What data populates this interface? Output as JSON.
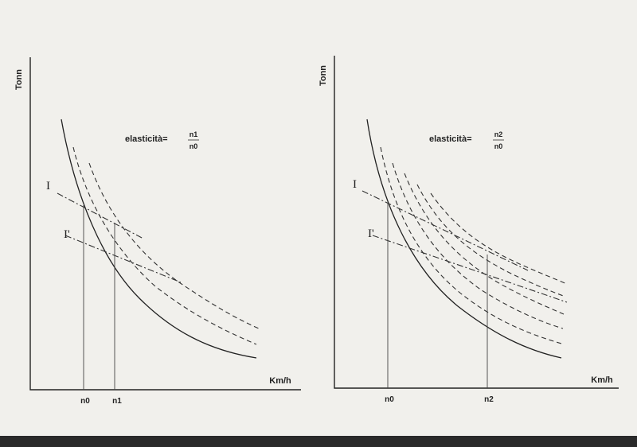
{
  "diagrams": [
    {
      "y_label": "Tonn",
      "x_label": "Km/h",
      "formula_left": "elasticità=",
      "formula_num": "n1",
      "formula_den": "n0",
      "line_I": "I",
      "line_I_prime": "I'",
      "tick_a": "n0",
      "tick_b": "n1"
    },
    {
      "y_label": "Tonn",
      "x_label": "Km/h",
      "formula_left": "elasticità=",
      "formula_num": "n2",
      "formula_den": "n0",
      "line_I": "I",
      "line_I_prime": "I'",
      "tick_a": "n0",
      "tick_b": "n2"
    }
  ]
}
